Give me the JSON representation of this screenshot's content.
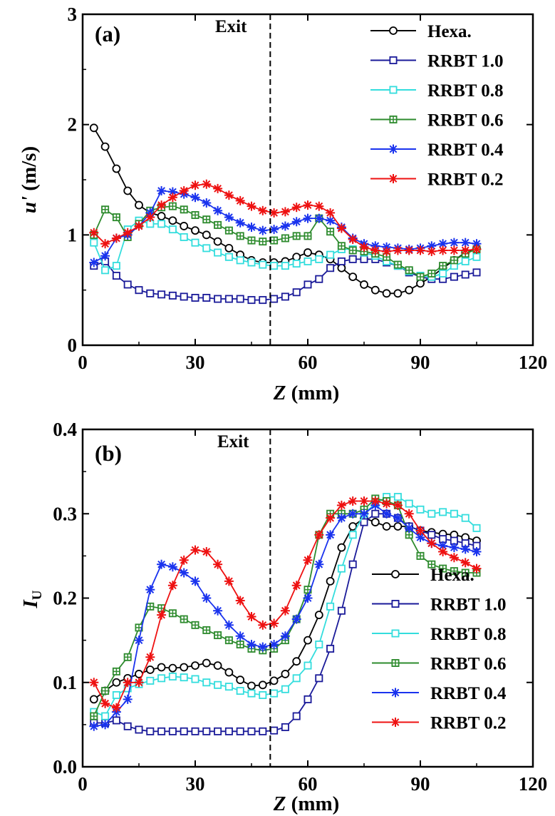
{
  "chart_data": [
    {
      "type": "line",
      "panel_label": "(a)",
      "annotation": "Exit",
      "exit_line_x": 50,
      "xlabel_italic": "Z",
      "xlabel_rest": " (mm)",
      "ylabel_italic": "u'",
      "ylabel_rest": " (m/s)",
      "xlim": [
        0,
        120
      ],
      "ylim": [
        0,
        3
      ],
      "xticks": [
        0,
        30,
        60,
        90,
        120
      ],
      "yticks": [
        0,
        1,
        2,
        3
      ],
      "legend_position": "top-right",
      "series": [
        {
          "name": "Hexa.",
          "color": "#000000",
          "marker": "circle",
          "x": [
            3,
            6,
            9,
            12,
            15,
            18,
            21,
            24,
            27,
            30,
            33,
            36,
            39,
            42,
            45,
            48,
            51,
            54,
            57,
            60,
            63,
            66,
            69,
            72,
            75,
            78,
            81,
            84,
            87,
            90,
            93,
            96,
            99,
            102,
            105
          ],
          "y": [
            1.97,
            1.8,
            1.6,
            1.4,
            1.27,
            1.2,
            1.17,
            1.13,
            1.08,
            1.04,
            1.0,
            0.94,
            0.88,
            0.82,
            0.77,
            0.75,
            0.75,
            0.76,
            0.8,
            0.84,
            0.82,
            0.78,
            0.7,
            0.62,
            0.55,
            0.5,
            0.47,
            0.47,
            0.5,
            0.56,
            0.62,
            0.7,
            0.77,
            0.84,
            0.88
          ]
        },
        {
          "name": "RRBT 1.0",
          "color": "#1a1a99",
          "marker": "square",
          "x": [
            3,
            6,
            9,
            12,
            15,
            18,
            21,
            24,
            27,
            30,
            33,
            36,
            39,
            42,
            45,
            48,
            51,
            54,
            57,
            60,
            63,
            66,
            69,
            72,
            75,
            78,
            81,
            84,
            87,
            90,
            93,
            96,
            99,
            102,
            105
          ],
          "y": [
            0.72,
            0.76,
            0.63,
            0.55,
            0.5,
            0.47,
            0.46,
            0.45,
            0.44,
            0.43,
            0.43,
            0.42,
            0.42,
            0.42,
            0.41,
            0.41,
            0.42,
            0.44,
            0.48,
            0.55,
            0.6,
            0.7,
            0.76,
            0.78,
            0.78,
            0.78,
            0.75,
            0.72,
            0.66,
            0.62,
            0.6,
            0.6,
            0.62,
            0.64,
            0.66
          ]
        },
        {
          "name": "RRBT 0.8",
          "color": "#33dddd",
          "marker": "square",
          "x": [
            3,
            6,
            9,
            12,
            15,
            18,
            21,
            24,
            27,
            30,
            33,
            36,
            39,
            42,
            45,
            48,
            51,
            54,
            57,
            60,
            63,
            66,
            69,
            72,
            75,
            78,
            81,
            84,
            87,
            90,
            93,
            96,
            99,
            102,
            105
          ],
          "y": [
            0.93,
            0.68,
            0.72,
            1.05,
            1.13,
            1.1,
            1.1,
            1.05,
            0.98,
            0.93,
            0.88,
            0.84,
            0.8,
            0.77,
            0.75,
            0.73,
            0.72,
            0.72,
            0.74,
            0.76,
            0.78,
            0.82,
            0.87,
            0.87,
            0.84,
            0.81,
            0.76,
            0.72,
            0.67,
            0.63,
            0.62,
            0.65,
            0.72,
            0.76,
            0.8
          ]
        },
        {
          "name": "RRBT 0.6",
          "color": "#2e8b2e",
          "marker": "crossed-square",
          "x": [
            3,
            6,
            9,
            12,
            15,
            18,
            21,
            24,
            27,
            30,
            33,
            36,
            39,
            42,
            45,
            48,
            51,
            54,
            57,
            60,
            63,
            66,
            69,
            72,
            75,
            78,
            81,
            84,
            87,
            90,
            93,
            96,
            99,
            102,
            105
          ],
          "y": [
            1.0,
            1.23,
            1.16,
            0.98,
            1.1,
            1.22,
            1.25,
            1.26,
            1.23,
            1.18,
            1.14,
            1.09,
            1.04,
            0.99,
            0.95,
            0.94,
            0.95,
            0.97,
            0.99,
            0.99,
            1.15,
            1.03,
            0.9,
            0.86,
            0.85,
            0.83,
            0.8,
            0.73,
            0.68,
            0.62,
            0.65,
            0.72,
            0.77,
            0.83,
            0.87
          ]
        },
        {
          "name": "RRBT 0.4",
          "color": "#1a33ee",
          "marker": "asterisk",
          "x": [
            3,
            6,
            9,
            12,
            15,
            18,
            21,
            24,
            27,
            30,
            33,
            36,
            39,
            42,
            45,
            48,
            51,
            54,
            57,
            60,
            63,
            66,
            69,
            72,
            75,
            78,
            81,
            84,
            87,
            90,
            93,
            96,
            99,
            102,
            105
          ],
          "y": [
            0.75,
            0.81,
            0.97,
            1.0,
            1.08,
            1.2,
            1.4,
            1.39,
            1.37,
            1.34,
            1.29,
            1.22,
            1.16,
            1.11,
            1.07,
            1.04,
            1.05,
            1.08,
            1.12,
            1.15,
            1.15,
            1.13,
            1.07,
            0.97,
            0.92,
            0.9,
            0.89,
            0.88,
            0.87,
            0.88,
            0.9,
            0.92,
            0.93,
            0.93,
            0.92
          ]
        },
        {
          "name": "RRBT 0.2",
          "color": "#ee1111",
          "marker": "asterisk",
          "x": [
            3,
            6,
            9,
            12,
            15,
            18,
            21,
            24,
            27,
            30,
            33,
            36,
            39,
            42,
            45,
            48,
            51,
            54,
            57,
            60,
            63,
            66,
            69,
            72,
            75,
            78,
            81,
            84,
            87,
            90,
            93,
            96,
            99,
            102,
            105
          ],
          "y": [
            1.02,
            0.92,
            0.97,
            1.02,
            1.08,
            1.16,
            1.27,
            1.34,
            1.4,
            1.45,
            1.46,
            1.42,
            1.36,
            1.31,
            1.26,
            1.22,
            1.2,
            1.21,
            1.25,
            1.27,
            1.26,
            1.2,
            1.06,
            0.96,
            0.89,
            0.86,
            0.85,
            0.86,
            0.86,
            0.86,
            0.85,
            0.86,
            0.86,
            0.86,
            0.87
          ]
        }
      ],
      "legend": [
        "Hexa.",
        "RRBT 1.0",
        "RRBT 0.8",
        "RRBT 0.6",
        "RRBT 0.4",
        "RRBT 0.2"
      ]
    },
    {
      "type": "line",
      "panel_label": "(b)",
      "annotation": "Exit",
      "exit_line_x": 50,
      "xlabel_italic": "Z",
      "xlabel_rest": " (mm)",
      "ylabel_italic": "I",
      "ylabel_sub": "U",
      "xlim": [
        0,
        120
      ],
      "ylim": [
        0,
        0.4
      ],
      "xticks": [
        0,
        30,
        60,
        90,
        120
      ],
      "yticks": [
        0.0,
        0.1,
        0.2,
        0.3,
        0.4
      ],
      "ytick_labels": [
        "0.0",
        "0.1",
        "0.2",
        "0.3",
        "0.4"
      ],
      "legend_position": "center-right",
      "series": [
        {
          "name": "Hexa.",
          "color": "#000000",
          "marker": "circle",
          "x": [
            3,
            6,
            9,
            12,
            15,
            18,
            21,
            24,
            27,
            30,
            33,
            36,
            39,
            42,
            45,
            48,
            51,
            54,
            57,
            60,
            63,
            66,
            69,
            72,
            75,
            78,
            81,
            84,
            87,
            90,
            93,
            96,
            99,
            102,
            105
          ],
          "y": [
            0.08,
            0.09,
            0.1,
            0.105,
            0.11,
            0.115,
            0.118,
            0.117,
            0.118,
            0.12,
            0.123,
            0.12,
            0.112,
            0.103,
            0.096,
            0.097,
            0.102,
            0.11,
            0.125,
            0.15,
            0.18,
            0.22,
            0.26,
            0.285,
            0.295,
            0.29,
            0.285,
            0.285,
            0.285,
            0.28,
            0.278,
            0.276,
            0.275,
            0.272,
            0.268
          ]
        },
        {
          "name": "RRBT 1.0",
          "color": "#1a1a99",
          "marker": "square",
          "x": [
            3,
            6,
            9,
            12,
            15,
            18,
            21,
            24,
            27,
            30,
            33,
            36,
            39,
            42,
            45,
            48,
            51,
            54,
            57,
            60,
            63,
            66,
            69,
            72,
            75,
            78,
            81,
            84,
            87,
            90,
            93,
            96,
            99,
            102,
            105
          ],
          "y": [
            0.052,
            0.052,
            0.055,
            0.048,
            0.044,
            0.042,
            0.042,
            0.042,
            0.042,
            0.042,
            0.042,
            0.042,
            0.042,
            0.042,
            0.042,
            0.042,
            0.043,
            0.047,
            0.06,
            0.08,
            0.105,
            0.14,
            0.185,
            0.24,
            0.29,
            0.3,
            0.3,
            0.295,
            0.285,
            0.28,
            0.275,
            0.27,
            0.268,
            0.265,
            0.262
          ]
        },
        {
          "name": "RRBT 0.8",
          "color": "#33dddd",
          "marker": "square",
          "x": [
            3,
            6,
            9,
            12,
            15,
            18,
            21,
            24,
            27,
            30,
            33,
            36,
            39,
            42,
            45,
            48,
            51,
            54,
            57,
            60,
            63,
            66,
            69,
            72,
            75,
            78,
            81,
            84,
            87,
            90,
            93,
            96,
            99,
            102,
            105
          ],
          "y": [
            0.065,
            0.06,
            0.085,
            0.093,
            0.098,
            0.102,
            0.105,
            0.107,
            0.106,
            0.104,
            0.1,
            0.097,
            0.095,
            0.09,
            0.087,
            0.085,
            0.087,
            0.092,
            0.105,
            0.12,
            0.145,
            0.19,
            0.235,
            0.275,
            0.3,
            0.312,
            0.32,
            0.32,
            0.312,
            0.305,
            0.3,
            0.302,
            0.3,
            0.295,
            0.283
          ]
        },
        {
          "name": "RRBT 0.6",
          "color": "#2e8b2e",
          "marker": "crossed-square",
          "x": [
            3,
            6,
            9,
            12,
            15,
            18,
            21,
            24,
            27,
            30,
            33,
            36,
            39,
            42,
            45,
            48,
            51,
            54,
            57,
            60,
            63,
            66,
            69,
            72,
            75,
            78,
            81,
            84,
            87,
            90,
            93,
            96,
            99,
            102,
            105
          ],
          "y": [
            0.06,
            0.09,
            0.113,
            0.13,
            0.165,
            0.19,
            0.188,
            0.182,
            0.175,
            0.168,
            0.162,
            0.156,
            0.15,
            0.145,
            0.14,
            0.138,
            0.14,
            0.15,
            0.175,
            0.21,
            0.275,
            0.3,
            0.3,
            0.3,
            0.305,
            0.318,
            0.315,
            0.31,
            0.275,
            0.25,
            0.24,
            0.235,
            0.232,
            0.23,
            0.23
          ]
        },
        {
          "name": "RRBT 0.4",
          "color": "#1a33ee",
          "marker": "asterisk",
          "x": [
            3,
            6,
            9,
            12,
            15,
            18,
            21,
            24,
            27,
            30,
            33,
            36,
            39,
            42,
            45,
            48,
            51,
            54,
            57,
            60,
            63,
            66,
            69,
            72,
            75,
            78,
            81,
            84,
            87,
            90,
            93,
            96,
            99,
            102,
            105
          ],
          "y": [
            0.048,
            0.05,
            0.065,
            0.08,
            0.15,
            0.21,
            0.24,
            0.237,
            0.23,
            0.22,
            0.2,
            0.185,
            0.168,
            0.155,
            0.145,
            0.142,
            0.145,
            0.155,
            0.175,
            0.2,
            0.24,
            0.275,
            0.295,
            0.3,
            0.3,
            0.31,
            0.3,
            0.295,
            0.283,
            0.272,
            0.265,
            0.262,
            0.26,
            0.258,
            0.255
          ]
        },
        {
          "name": "RRBT 0.2",
          "color": "#ee1111",
          "marker": "asterisk",
          "x": [
            3,
            6,
            9,
            12,
            15,
            18,
            21,
            24,
            27,
            30,
            33,
            36,
            39,
            42,
            45,
            48,
            51,
            54,
            57,
            60,
            63,
            66,
            69,
            72,
            75,
            78,
            81,
            84,
            87,
            90,
            93,
            96,
            99,
            102,
            105
          ],
          "y": [
            0.1,
            0.075,
            0.07,
            0.1,
            0.1,
            0.13,
            0.18,
            0.215,
            0.245,
            0.257,
            0.255,
            0.24,
            0.22,
            0.197,
            0.178,
            0.168,
            0.17,
            0.185,
            0.215,
            0.245,
            0.275,
            0.295,
            0.31,
            0.315,
            0.315,
            0.315,
            0.312,
            0.31,
            0.3,
            0.28,
            0.265,
            0.255,
            0.248,
            0.242,
            0.235
          ]
        }
      ],
      "legend": [
        "Hexa.",
        "RRBT 1.0",
        "RRBT 0.8",
        "RRBT 0.6",
        "RRBT 0.4",
        "RRBT 0.2"
      ]
    }
  ]
}
